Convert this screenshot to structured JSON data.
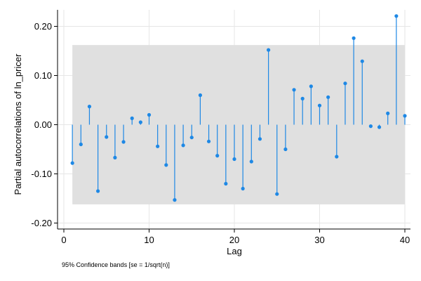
{
  "chart_data": {
    "type": "stem",
    "title": "",
    "xlabel": "Lag",
    "ylabel": "Partial autocorrelations of ln_pricer",
    "note": "95% Confidence bands [se = 1/sqrt(n)]",
    "xlim": [
      0,
      40
    ],
    "ylim": [
      -0.21,
      0.225
    ],
    "xticks": [
      0,
      10,
      20,
      30,
      40
    ],
    "xtick_labels": [
      "0",
      "10",
      "20",
      "30",
      "40"
    ],
    "yticks": [
      -0.2,
      -0.1,
      0.0,
      0.1,
      0.2
    ],
    "ytick_labels": [
      "-0.20",
      "-0.10",
      "0.00",
      "0.10",
      "0.20"
    ],
    "grid": true,
    "confidence_band": [
      -0.162,
      0.162
    ],
    "series": [
      {
        "x": [
          1,
          2,
          3,
          4,
          5,
          6,
          7,
          8,
          9,
          10,
          11,
          12,
          13,
          14,
          15,
          16,
          17,
          18,
          19,
          20,
          21,
          22,
          23,
          24,
          25,
          26,
          27,
          28,
          29,
          30,
          31,
          32,
          33,
          34,
          35,
          36,
          37,
          38,
          39,
          40
        ],
        "values": [
          -0.078,
          -0.04,
          0.037,
          -0.135,
          -0.025,
          -0.067,
          -0.035,
          0.013,
          0.005,
          0.02,
          -0.044,
          -0.082,
          -0.153,
          -0.042,
          -0.026,
          0.06,
          -0.034,
          -0.063,
          -0.12,
          -0.07,
          -0.13,
          -0.075,
          -0.029,
          0.152,
          -0.141,
          -0.05,
          0.071,
          0.053,
          0.078,
          0.039,
          0.056,
          -0.065,
          0.084,
          0.176,
          0.129,
          -0.003,
          -0.005,
          0.023,
          0.221,
          0.018
        ]
      }
    ],
    "colors": {
      "stem": "#1e88e5",
      "band": "#e0e0e0",
      "grid": "#e6e6e6",
      "axis": "#000000"
    }
  }
}
